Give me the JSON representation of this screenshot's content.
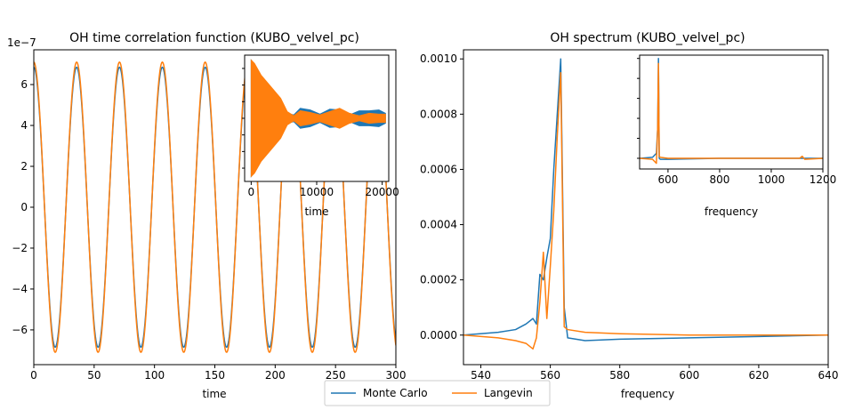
{
  "colors": {
    "series1": "#1f77b4",
    "series2": "#ff7f0e"
  },
  "legend": {
    "placement": "bottom-center",
    "items": [
      "Monte Carlo",
      "Langevin"
    ]
  },
  "chart_data": [
    {
      "type": "line",
      "title": "OH time correlation function (KUBO_velvel_pc)",
      "xlabel": "time",
      "ylabel": "",
      "xlim": [
        0,
        300
      ],
      "ylim": [
        -7.7e-07,
        7.7e-07
      ],
      "offset_label": "1e−7",
      "xticks": [
        "0",
        "50",
        "100",
        "150",
        "200",
        "250",
        "300"
      ],
      "yticks": [
        "−6",
        "−4",
        "−2",
        "0",
        "2",
        "4",
        "6"
      ],
      "grid": false,
      "series": [
        {
          "name": "Monte Carlo",
          "period": 35.5,
          "amplitude": 6.85e-07,
          "x": [
            0,
            17.75,
            35.5,
            53.25,
            71,
            88.75,
            106.5,
            124.25,
            142,
            159.75,
            177.5,
            195.25,
            213,
            230.75,
            248.5,
            266.25,
            284,
            300
          ],
          "y": [
            6.85e-07,
            -6.85e-07,
            6.85e-07,
            -6.85e-07,
            6.85e-07,
            -6.85e-07,
            6.85e-07,
            -6.85e-07,
            6.85e-07,
            -6.85e-07,
            6.85e-07,
            -6.85e-07,
            6.85e-07,
            -6.85e-07,
            6.85e-07,
            -6.85e-07,
            6.85e-07,
            -6.4e-07
          ]
        },
        {
          "name": "Langevin",
          "period": 35.5,
          "amplitude": 7.1e-07,
          "x": [
            0,
            17.75,
            35.5,
            53.25,
            71,
            88.75,
            106.5,
            124.25,
            142,
            159.75,
            177.5,
            195.25,
            213,
            230.75,
            248.5,
            266.25,
            284,
            300
          ],
          "y": [
            7.1e-07,
            -7.1e-07,
            7.1e-07,
            -7.1e-07,
            7.1e-07,
            -7.1e-07,
            7.1e-07,
            -7.1e-07,
            7.1e-07,
            -7.1e-07,
            7.1e-07,
            -7.1e-07,
            7.1e-07,
            -7.1e-07,
            7.1e-07,
            -7.1e-07,
            7.1e-07,
            -7e-07
          ]
        }
      ],
      "inset": {
        "xlabel": "time",
        "xlim": [
          -1000,
          21000
        ],
        "xticks": [
          "0",
          "10000",
          "20000"
        ],
        "envelope_x": [
          0,
          500,
          1500,
          3000,
          4500,
          5500,
          6500,
          7500,
          9000,
          10500,
          12000,
          13500,
          15000,
          16500,
          18000,
          19500,
          20500
        ],
        "series": [
          {
            "name": "Monte Carlo",
            "upper": [
              7.0,
              6.5,
              5.0,
              3.5,
              2.0,
              0.6,
              0.4,
              1.2,
              1.0,
              0.5,
              1.1,
              1.0,
              0.4,
              0.9,
              0.9,
              1.0,
              0.6
            ]
          },
          {
            "name": "Langevin",
            "upper": [
              7.0,
              6.6,
              5.2,
              3.8,
              2.4,
              0.8,
              0.3,
              0.9,
              0.7,
              0.4,
              0.8,
              1.2,
              0.6,
              0.3,
              0.6,
              0.5,
              0.5
            ]
          }
        ]
      }
    },
    {
      "type": "line",
      "title": "OH spectrum (KUBO_velvel_pc)",
      "xlabel": "frequency",
      "ylabel": "",
      "xlim": [
        535,
        640
      ],
      "ylim": [
        -0.000107,
        0.001033
      ],
      "xticks": [
        "540",
        "560",
        "580",
        "600",
        "620",
        "640"
      ],
      "yticks": [
        "0.0000",
        "0.0002",
        "0.0004",
        "0.0006",
        "0.0008",
        "0.0010"
      ],
      "grid": false,
      "series": [
        {
          "name": "Monte Carlo",
          "x": [
            535,
            545,
            550,
            553,
            555,
            556,
            557,
            558,
            559,
            560,
            561,
            562,
            563,
            564,
            565,
            570,
            580,
            600,
            620,
            640
          ],
          "y": [
            0.0,
            1e-05,
            2e-05,
            4e-05,
            6e-05,
            4e-05,
            0.00022,
            0.0002,
            0.00028,
            0.00035,
            0.0006,
            0.0008,
            0.001,
            0.0001,
            -1e-05,
            -2e-05,
            -1.5e-05,
            -1e-05,
            -5e-06,
            0.0
          ]
        },
        {
          "name": "Langevin",
          "x": [
            535,
            545,
            550,
            553,
            555,
            556,
            557,
            558,
            559,
            560,
            561,
            562,
            563,
            564,
            565,
            570,
            580,
            600,
            620,
            640
          ],
          "y": [
            0.0,
            -1e-05,
            -2e-05,
            -3e-05,
            -5e-05,
            -1e-05,
            0.00012,
            0.0003,
            6e-05,
            0.00025,
            0.00045,
            0.00072,
            0.00095,
            3e-05,
            2e-05,
            1e-05,
            5e-06,
            0.0,
            0.0,
            0.0
          ]
        }
      ],
      "inset": {
        "xlabel": "frequency",
        "xlim": [
          490,
          1200
        ],
        "xticks": [
          "600",
          "800",
          "1000",
          "1200"
        ],
        "series": [
          {
            "name": "Monte Carlo",
            "x": [
              490,
              540,
              555,
              560,
              563,
              566,
              570,
              600,
              800,
              1000,
              1110,
              1120,
              1130,
              1200
            ],
            "y": [
              0.0,
              1e-05,
              5e-05,
              0.0003,
              0.001,
              0.0,
              -1e-05,
              -1e-05,
              0.0,
              0.0,
              0.0,
              0.0,
              0.0,
              0.0
            ]
          },
          {
            "name": "Langevin",
            "x": [
              490,
              540,
              555,
              560,
              563,
              566,
              570,
              600,
              800,
              1000,
              1110,
              1120,
              1130,
              1200
            ],
            "y": [
              0.0,
              -1e-05,
              -5e-05,
              0.0003,
              0.00095,
              2e-05,
              1e-05,
              0.0,
              0.0,
              0.0,
              0.0,
              2e-05,
              -1e-05,
              0.0
            ]
          }
        ]
      }
    }
  ]
}
